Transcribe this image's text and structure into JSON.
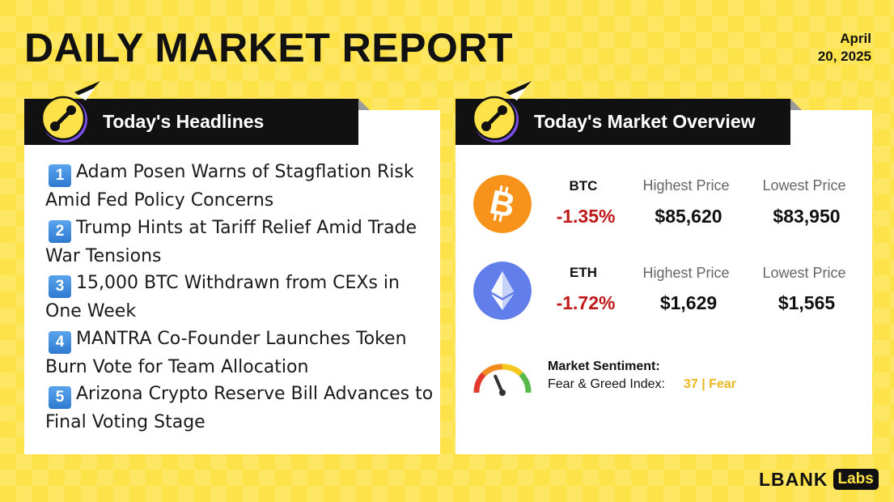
{
  "header": {
    "title": "DAILY MARKET REPORT",
    "date_line1": "April",
    "date_line2": "20, 2025"
  },
  "headlines": {
    "tab_title": "Today's Headlines",
    "items": [
      {
        "number": "1",
        "text": "Adam Posen Warns of Stagflation Risk Amid Fed Policy Concerns"
      },
      {
        "number": "2",
        "text": "Trump Hints at Tariff Relief Amid Trade War Tensions"
      },
      {
        "number": "3",
        "text": "15,000 BTC Withdrawn from CEXs in One Week"
      },
      {
        "number": "4",
        "text": "MANTRA Co-Founder Launches Token Burn Vote for Team Allocation"
      },
      {
        "number": "5",
        "text": "Arizona Crypto Reserve Bill Advances to Final Voting Stage"
      }
    ]
  },
  "market": {
    "tab_title": "Today's Market Overview",
    "coins": [
      {
        "ticker": "BTC",
        "change": "-1.35%",
        "highest_label": "Highest Price",
        "highest": "$85,620",
        "lowest_label": "Lowest Price",
        "lowest": "$83,950",
        "icon": "bitcoin-icon",
        "color": "#f7931a"
      },
      {
        "ticker": "ETH",
        "change": "-1.72%",
        "highest_label": "Highest Price",
        "highest": "$1,629",
        "lowest_label": "Lowest Price",
        "lowest": "$1,565",
        "icon": "ethereum-icon",
        "color": "#627eea"
      }
    ],
    "sentiment": {
      "title": "Market Sentiment:",
      "label": "Fear & Greed Index:",
      "value": "37 | Fear",
      "index": 37
    }
  },
  "brand": {
    "name": "LBANK",
    "labs": "Labs"
  },
  "colors": {
    "background": "#fde24a",
    "negative": "#c01818",
    "fear": "#e9b820"
  }
}
